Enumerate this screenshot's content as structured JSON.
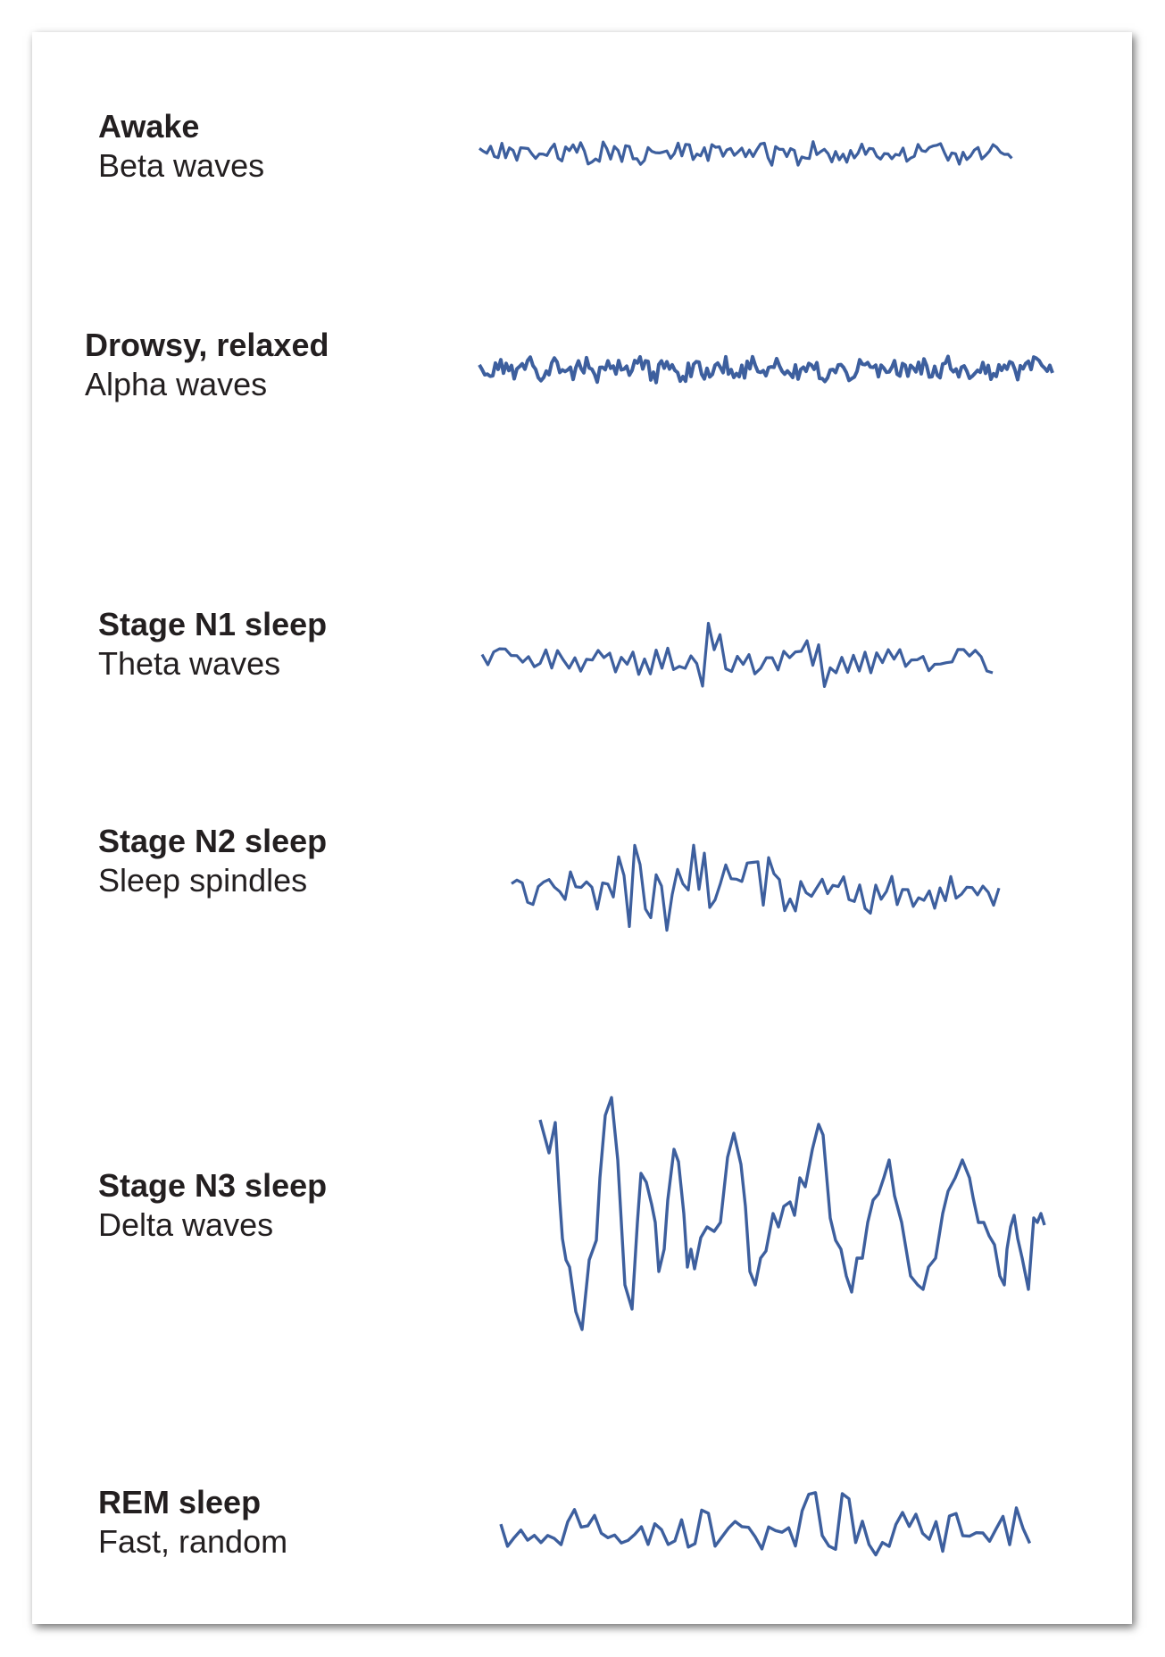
{
  "stages": [
    {
      "key": "awake",
      "name": "Awake",
      "wave_type": "Beta waves"
    },
    {
      "key": "drowsy",
      "name": "Drowsy, relaxed",
      "wave_type": "Alpha waves"
    },
    {
      "key": "n1",
      "name": "Stage N1 sleep",
      "wave_type": "Theta waves"
    },
    {
      "key": "n2",
      "name": "Stage N2 sleep",
      "wave_type": "Sleep spindles"
    },
    {
      "key": "n3",
      "name": "Stage N3 sleep",
      "wave_type": "Delta waves"
    },
    {
      "key": "rem",
      "name": "REM sleep",
      "wave_type": "Fast, random"
    }
  ],
  "colors": {
    "wave": "#3d5f9e",
    "text": "#231f20"
  }
}
